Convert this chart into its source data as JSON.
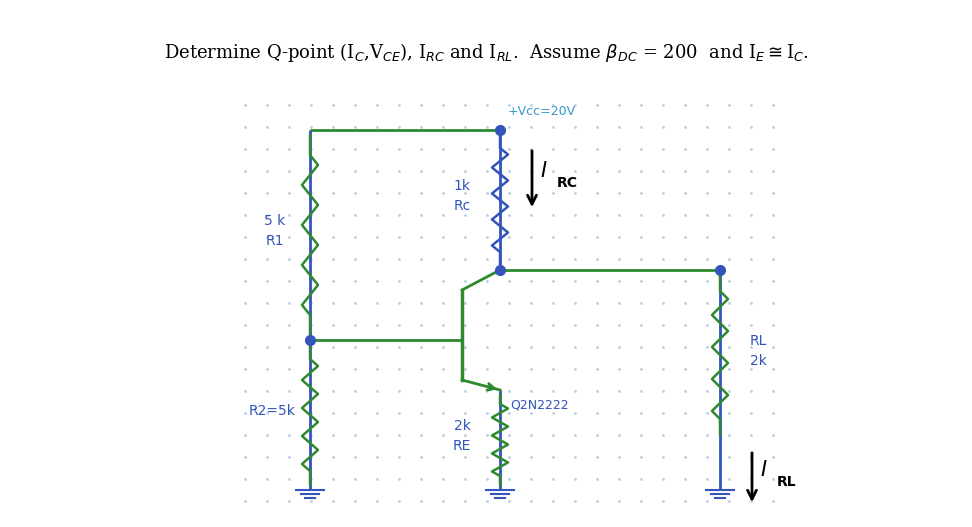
{
  "bg_color": "#ffffff",
  "dot_color": "#b8cce4",
  "wire_blue": "#3355bb",
  "wire_green": "#2d8a2d",
  "label_color": "#3355bb",
  "title_color": "#000000",
  "vcc_label": "+Vcc=20V",
  "vcc_label_color": "#3399cc",
  "r1_top": "5 k",
  "r1_bot": "R1",
  "r2_label": "R2=5k",
  "rc_top": "1k",
  "rc_bot": "Rc",
  "re_top": "2k",
  "re_bot": "RE",
  "rl_top": "RL",
  "rl_bot": "2k",
  "q_label": "Q2N2222",
  "figsize": [
    9.72,
    5.27
  ],
  "dpi": 100
}
